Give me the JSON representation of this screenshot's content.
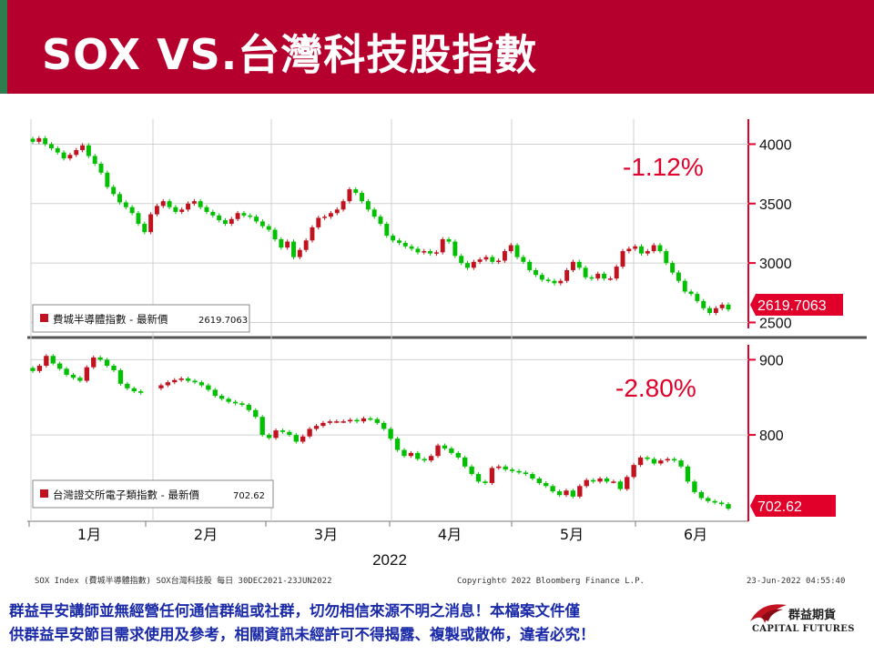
{
  "header": {
    "title": "SOX VS.台灣科技股指數"
  },
  "chart_data": [
    {
      "type": "candlestick",
      "legend_label": "費城半導體指數 - 最新價",
      "legend_value": "2619.7063",
      "last_value": 2619.7063,
      "last_value_label": "2619.7063",
      "change_label": "-1.12%",
      "y_ticks": [
        4000,
        3500,
        3000,
        2500
      ],
      "ylim": [
        2450,
        4210
      ],
      "closes": [
        4020,
        4050,
        4000,
        3965,
        3930,
        3880,
        3910,
        3950,
        3990,
        3900,
        3835,
        3760,
        3640,
        3580,
        3510,
        3470,
        3420,
        3330,
        3260,
        3410,
        3480,
        3520,
        3470,
        3430,
        3450,
        3500,
        3520,
        3470,
        3430,
        3400,
        3360,
        3330,
        3370,
        3420,
        3400,
        3390,
        3350,
        3310,
        3280,
        3200,
        3130,
        3180,
        3050,
        3110,
        3190,
        3300,
        3380,
        3390,
        3420,
        3450,
        3520,
        3620,
        3590,
        3520,
        3450,
        3390,
        3330,
        3230,
        3190,
        3170,
        3140,
        3120,
        3090,
        3100,
        3080,
        3090,
        3200,
        3180,
        3060,
        3000,
        2960,
        3010,
        3030,
        3050,
        3010,
        3020,
        3100,
        3150,
        3050,
        3010,
        2940,
        2900,
        2860,
        2850,
        2830,
        2850,
        2940,
        3010,
        2960,
        2880,
        2870,
        2910,
        2870,
        2870,
        2970,
        3100,
        3120,
        3140,
        3080,
        3100,
        3150,
        3100,
        3000,
        2920,
        2850,
        2760,
        2740,
        2680,
        2620,
        2580,
        2620,
        2650,
        2610
      ],
      "gap_after": [
        3,
        15,
        52,
        55,
        108
      ],
      "series_color_up": "#c1121f",
      "series_color_down": "#00c000"
    },
    {
      "type": "candlestick",
      "legend_label": "台灣證交所電子類指數 - 最新價",
      "legend_value": "702.62",
      "last_value": 702.62,
      "last_value_label": "702.62",
      "change_label": "-2.80%",
      "y_ticks": [
        900,
        800
      ],
      "ylim": [
        690,
        915
      ],
      "closes": [
        885,
        892,
        905,
        895,
        888,
        880,
        876,
        872,
        890,
        903,
        900,
        892,
        886,
        868,
        862,
        858,
        856,
        853,
        862,
        866,
        870,
        873,
        875,
        872,
        870,
        866,
        860,
        852,
        848,
        844,
        842,
        840,
        833,
        824,
        800,
        796,
        806,
        804,
        800,
        791,
        798,
        808,
        812,
        816,
        818,
        818,
        818,
        820,
        818,
        822,
        821,
        816,
        808,
        795,
        780,
        772,
        776,
        768,
        766,
        772,
        786,
        782,
        776,
        770,
        758,
        748,
        738,
        736,
        756,
        758,
        754,
        752,
        750,
        748,
        742,
        736,
        732,
        725,
        720,
        726,
        718,
        732,
        740,
        738,
        742,
        738,
        738,
        728,
        744,
        760,
        770,
        768,
        762,
        766,
        768,
        766,
        758,
        738,
        724,
        716,
        712,
        710,
        708,
        702
      ]
    }
  ],
  "x_axis": {
    "months": [
      "1月",
      "2月",
      "3月",
      "4月",
      "5月",
      "6月"
    ],
    "year": "2022"
  },
  "source_left": "SOX Index (費城半導體指數) SOX台灣科技股  每日 30DEC2021-23JUN2022",
  "source_center": "Copyright© 2022 Bloomberg Finance L.P.",
  "source_right": "23-Jun-2022 04:55:40",
  "disclaimer_line1": "群益早安講師並無經營任何通信群組或社群，切勿相信來源不明之消息！本檔案文件僅",
  "disclaimer_line2": "供群益早安節目需求使用及參考，相關資訊未經許可不得揭露、複製或散佈，違者必究！",
  "logo": {
    "name": "群益期貨",
    "english": "CAPITAL FUTURES"
  },
  "colors": {
    "title_bar": "#b5002d",
    "accent_green": "#2e7d4f",
    "up": "#c1121f",
    "down": "#00c000",
    "axis": "#e0002a",
    "disclaimer": "#1a2aa8"
  }
}
